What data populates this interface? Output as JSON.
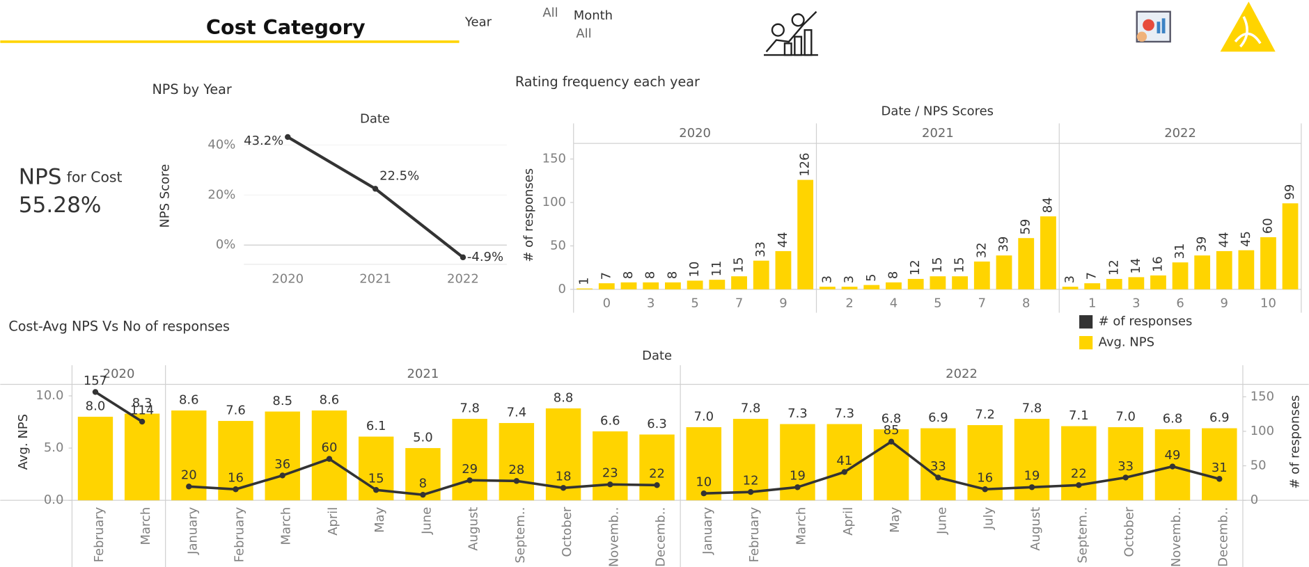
{
  "header": {
    "title": "Cost Category",
    "filters": [
      {
        "label": "Year",
        "value": "All"
      },
      {
        "label": "Month",
        "value": "All"
      }
    ]
  },
  "kpi": {
    "label": "NPS",
    "qualifier": "for Cost",
    "value": "55.28%"
  },
  "chart_data": [
    {
      "type": "line",
      "title": "NPS by Year",
      "x_header": "Date",
      "y_label": "NPS Score",
      "categories": [
        "2020",
        "2021",
        "2022"
      ],
      "values": [
        43.2,
        22.5,
        -4.9
      ],
      "value_labels": [
        "43.2%",
        "22.5%",
        "-4.9%"
      ],
      "color": "#333333",
      "ylim": [
        -7.7,
        46.3
      ],
      "yticks": [
        {
          "value": 0,
          "label": "0%"
        },
        {
          "value": 20,
          "label": "20%"
        },
        {
          "value": 40,
          "label": "40%"
        }
      ]
    },
    {
      "type": "bar",
      "title": "Rating frequency each year",
      "x_header": "Date / NPS Scores",
      "y_label": "# of responses",
      "color": "#FFD400",
      "ylim": [
        0,
        167
      ],
      "yticks": [
        0,
        50,
        100,
        150
      ],
      "facets": [
        {
          "name": "2020",
          "categories": [
            null,
            0,
            null,
            3,
            null,
            5,
            null,
            7,
            null,
            9,
            null
          ],
          "values": [
            1,
            7,
            8,
            8,
            8,
            10,
            11,
            15,
            33,
            44,
            126
          ]
        },
        {
          "name": "2021",
          "categories": [
            null,
            2,
            null,
            4,
            null,
            5,
            null,
            7,
            null,
            8,
            null
          ],
          "values": [
            3,
            3,
            5,
            8,
            12,
            15,
            15,
            32,
            39,
            59,
            84
          ]
        },
        {
          "name": "2022",
          "categories": [
            null,
            1,
            null,
            3,
            null,
            6,
            null,
            9,
            null,
            10,
            null
          ],
          "values": [
            3,
            7,
            12,
            14,
            16,
            31,
            39,
            44,
            45,
            60,
            99
          ]
        }
      ]
    },
    {
      "type": "combo",
      "title": "Cost-Avg NPS Vs No of responses",
      "x_header": "Date",
      "y_label": "Avg. NPS",
      "y2_label": "# of responses",
      "ylim": [
        0,
        11.1
      ],
      "yticks": [
        {
          "value": 0,
          "label": "0.0"
        },
        {
          "value": 5,
          "label": "5.0"
        },
        {
          "value": 10,
          "label": "10.0"
        }
      ],
      "y2lim": [
        0,
        168
      ],
      "y2ticks": [
        0,
        50,
        100,
        150
      ],
      "facets": [
        {
          "name": "2020",
          "categories": [
            "February",
            "March"
          ]
        },
        {
          "name": "2021",
          "categories": [
            "January",
            "February",
            "March",
            "April",
            "May",
            "June",
            "August",
            "Septem..",
            "October",
            "Novemb..",
            "Decemb.."
          ]
        },
        {
          "name": "2022",
          "categories": [
            "January",
            "February",
            "March",
            "April",
            "May",
            "June",
            "July",
            "August",
            "Septem..",
            "October",
            "Novemb..",
            "Decemb.."
          ]
        }
      ],
      "series": [
        {
          "name": "# of responses",
          "type": "line",
          "axis": "y2",
          "color": "#333333",
          "values": [
            [
              157,
              114
            ],
            [
              20,
              16,
              36,
              60,
              15,
              8,
              29,
              28,
              18,
              23,
              22
            ],
            [
              10,
              12,
              19,
              41,
              85,
              33,
              16,
              19,
              22,
              33,
              49,
              31
            ]
          ]
        },
        {
          "name": "Avg. NPS",
          "type": "bar",
          "color": "#FFD400",
          "values": [
            [
              8.0,
              8.3
            ],
            [
              8.6,
              7.6,
              8.5,
              8.6,
              6.1,
              5.0,
              7.8,
              7.4,
              8.8,
              6.6,
              6.3
            ],
            [
              7.0,
              7.8,
              7.3,
              7.3,
              6.8,
              6.9,
              7.2,
              7.8,
              7.1,
              7.0,
              6.8,
              6.9
            ]
          ],
          "value_labels": [
            [
              "8.0",
              "8.3"
            ],
            [
              "8.6",
              "7.6",
              "8.5",
              "8.6",
              "6.1",
              "5.0",
              "7.8",
              "7.4",
              "8.8",
              "6.6",
              "6.3"
            ],
            [
              "7.0",
              "7.8",
              "7.3",
              "7.3",
              "6.8",
              "6.9",
              "7.2",
              "7.8",
              "7.1",
              "7.0",
              "6.8",
              "6.9"
            ]
          ]
        }
      ]
    }
  ]
}
